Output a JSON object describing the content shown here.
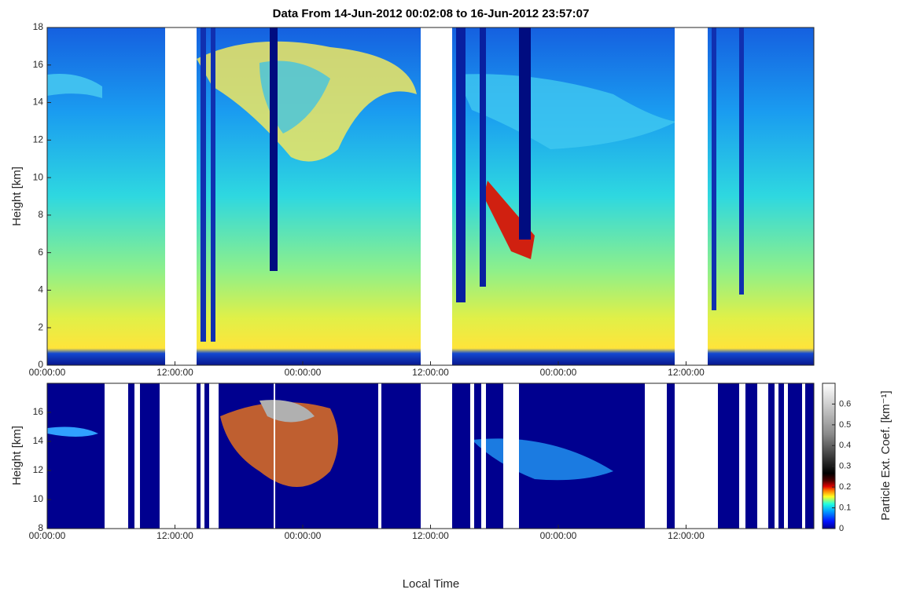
{
  "chart_data": [
    {
      "type": "heatmap",
      "title": "Data From 14-Jun-2012 00:02:08 to 16-Jun-2012 23:57:07",
      "ylabel": "Height [km]",
      "xlim": [
        0,
        72
      ],
      "ylim": [
        0,
        18
      ],
      "yticks": [
        0,
        2,
        4,
        6,
        8,
        10,
        12,
        14,
        16,
        18
      ],
      "xticks": [
        {
          "value": 0,
          "label": "00:00:00"
        },
        {
          "value": 12,
          "label": "12:00:00"
        },
        {
          "value": 24,
          "label": "00:00:00"
        },
        {
          "value": 36,
          "label": "12:00:00"
        },
        {
          "value": 48,
          "label": "00:00:00"
        },
        {
          "value": 60,
          "label": "12:00:00"
        }
      ]
    },
    {
      "type": "heatmap",
      "ylabel": "Height [km]",
      "xlabel": "Local Time",
      "xlim": [
        0,
        72
      ],
      "ylim": [
        8,
        18
      ],
      "yticks": [
        8,
        10,
        12,
        14,
        16
      ],
      "xticks": [
        {
          "value": 0,
          "label": "00:00:00"
        },
        {
          "value": 12,
          "label": "12:00:00"
        },
        {
          "value": 24,
          "label": "00:00:00"
        },
        {
          "value": 36,
          "label": "12:00:00"
        },
        {
          "value": 48,
          "label": "00:00:00"
        },
        {
          "value": 60,
          "label": "12:00:00"
        }
      ],
      "colorbar": {
        "label": "Particle Ext. Coef. [km⁻¹]",
        "lim": [
          0,
          0.7
        ],
        "ticks": [
          0,
          0.1,
          0.2,
          0.3,
          0.4,
          0.5,
          0.6
        ]
      }
    }
  ]
}
